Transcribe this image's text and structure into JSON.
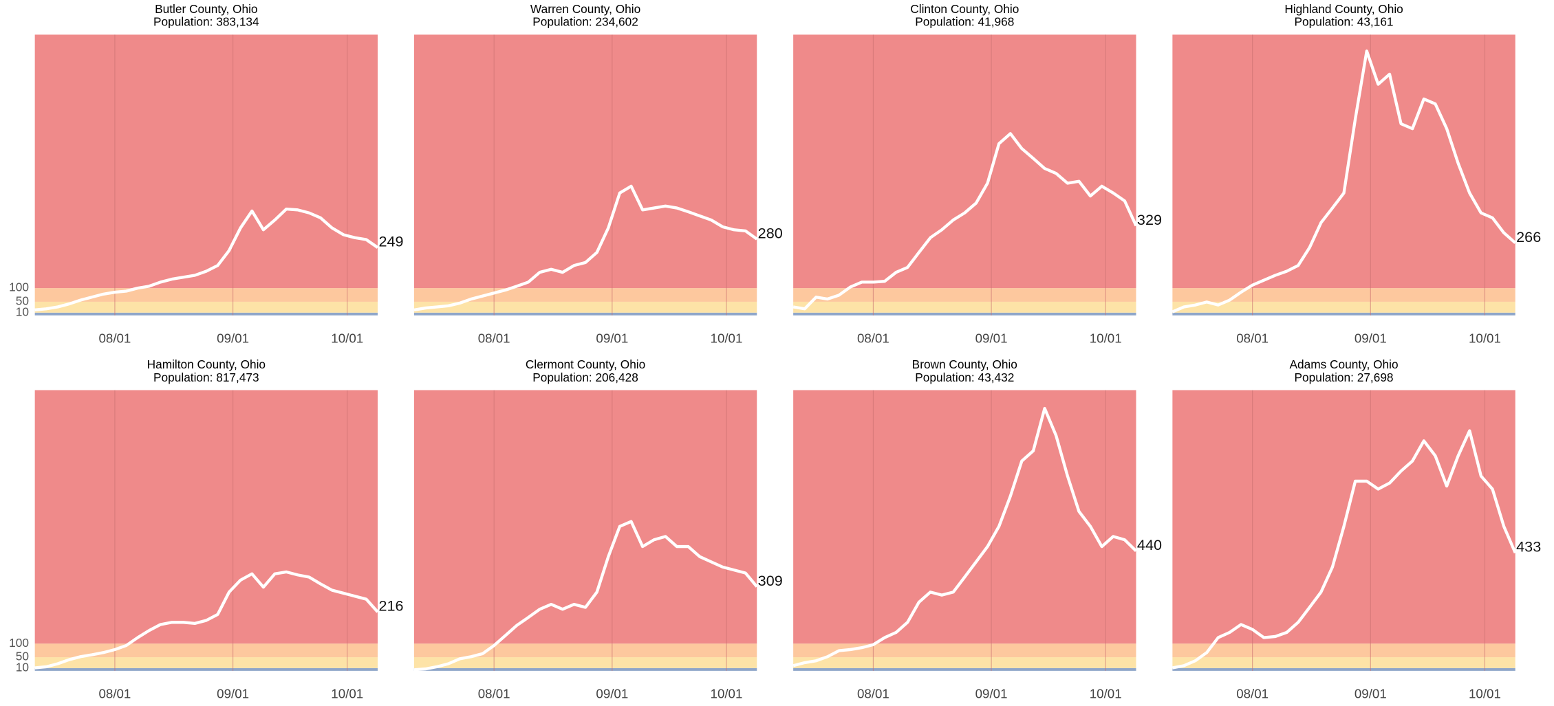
{
  "chart_data": [
    {
      "type": "line",
      "title": "Butler County, Ohio",
      "subtitle": "Population: 383,134",
      "x": [
        "07/11",
        "07/14",
        "07/17",
        "07/20",
        "07/23",
        "07/26",
        "07/29",
        "08/01",
        "08/04",
        "08/07",
        "08/10",
        "08/13",
        "08/16",
        "08/19",
        "08/22",
        "08/25",
        "08/28",
        "08/31",
        "09/03",
        "09/06",
        "09/09",
        "09/12",
        "09/15",
        "09/18",
        "09/21",
        "09/24",
        "09/27",
        "09/30",
        "10/03",
        "10/06",
        "10/09"
      ],
      "values": [
        20,
        24,
        31,
        42,
        56,
        67,
        78,
        85,
        89,
        100,
        107,
        122,
        133,
        140,
        147,
        162,
        183,
        238,
        321,
        383,
        314,
        350,
        390,
        387,
        376,
        358,
        321,
        296,
        285,
        278,
        249
      ],
      "xlim": [
        "07/11",
        "10/09"
      ],
      "xticks": [
        "08/01",
        "09/01",
        "10/01"
      ],
      "ylim": [
        0,
        1030
      ],
      "yticks": [
        10,
        50,
        100
      ],
      "color": "#ffffff",
      "grid": "x",
      "bands": [
        {
          "upto": 10,
          "color": "#8fa6c9"
        },
        {
          "upto": 50,
          "color": "#fde3a7"
        },
        {
          "upto": 100,
          "color": "#fdc89e"
        },
        {
          "color": "#ef8a8a"
        }
      ]
    },
    {
      "type": "line",
      "title": "Warren County, Ohio",
      "subtitle": "Population: 234,602",
      "x": [
        "07/11",
        "07/14",
        "07/17",
        "07/20",
        "07/23",
        "07/26",
        "07/29",
        "08/01",
        "08/04",
        "08/07",
        "08/10",
        "08/13",
        "08/16",
        "08/19",
        "08/22",
        "08/25",
        "08/28",
        "08/31",
        "09/03",
        "09/06",
        "09/09",
        "09/12",
        "09/15",
        "09/18",
        "09/21",
        "09/24",
        "09/27",
        "09/30",
        "10/03",
        "10/06",
        "10/09"
      ],
      "values": [
        20,
        27,
        31,
        35,
        45,
        60,
        71,
        82,
        93,
        107,
        122,
        158,
        169,
        158,
        183,
        194,
        231,
        321,
        449,
        474,
        387,
        394,
        401,
        394,
        380,
        365,
        350,
        325,
        314,
        310,
        280
      ],
      "xlim": [
        "07/11",
        "10/09"
      ],
      "xticks": [
        "08/01",
        "09/01",
        "10/01"
      ],
      "ylim": [
        0,
        1030
      ],
      "color": "#ffffff",
      "grid": "x",
      "bands": [
        {
          "upto": 10,
          "color": "#8fa6c9"
        },
        {
          "upto": 50,
          "color": "#fde3a7"
        },
        {
          "upto": 100,
          "color": "#fdc89e"
        },
        {
          "color": "#ef8a8a"
        }
      ]
    },
    {
      "type": "line",
      "title": "Clinton County, Ohio",
      "subtitle": "Population:  41,968",
      "x": [
        "07/11",
        "07/14",
        "07/17",
        "07/20",
        "07/23",
        "07/26",
        "07/29",
        "08/01",
        "08/04",
        "08/07",
        "08/10",
        "08/13",
        "08/16",
        "08/19",
        "08/22",
        "08/25",
        "08/28",
        "08/31",
        "09/03",
        "09/06",
        "09/09",
        "09/12",
        "09/15",
        "09/18",
        "09/21",
        "09/24",
        "09/27",
        "09/30",
        "10/03",
        "10/06",
        "10/09"
      ],
      "values": [
        31,
        24,
        67,
        60,
        74,
        104,
        122,
        122,
        125,
        158,
        176,
        231,
        285,
        314,
        350,
        376,
        412,
        485,
        630,
        667,
        612,
        576,
        539,
        521,
        485,
        492,
        438,
        474,
        449,
        420,
        329
      ],
      "xlim": [
        "07/11",
        "10/09"
      ],
      "xticks": [
        "08/01",
        "09/01",
        "10/01"
      ],
      "ylim": [
        0,
        1030
      ],
      "color": "#ffffff",
      "grid": "x",
      "bands": [
        {
          "upto": 10,
          "color": "#8fa6c9"
        },
        {
          "upto": 50,
          "color": "#fde3a7"
        },
        {
          "upto": 100,
          "color": "#fdc89e"
        },
        {
          "color": "#ef8a8a"
        }
      ]
    },
    {
      "type": "line",
      "title": "Highland County, Ohio",
      "subtitle": "Population:  43,161",
      "x": [
        "07/11",
        "07/14",
        "07/17",
        "07/20",
        "07/23",
        "07/26",
        "07/29",
        "08/01",
        "08/04",
        "08/07",
        "08/10",
        "08/13",
        "08/16",
        "08/19",
        "08/22",
        "08/25",
        "08/28",
        "08/31",
        "09/03",
        "09/06",
        "09/09",
        "09/12",
        "09/15",
        "09/18",
        "09/21",
        "09/24",
        "09/27",
        "09/30",
        "10/03",
        "10/06",
        "10/09"
      ],
      "values": [
        13,
        31,
        38,
        49,
        38,
        56,
        85,
        111,
        129,
        147,
        162,
        183,
        249,
        340,
        394,
        449,
        721,
        970,
        848,
        885,
        703,
        685,
        794,
        776,
        685,
        558,
        449,
        376,
        358,
        303,
        266
      ],
      "xlim": [
        "07/11",
        "10/09"
      ],
      "xticks": [
        "08/01",
        "09/01",
        "10/01"
      ],
      "ylim": [
        0,
        1030
      ],
      "color": "#ffffff",
      "grid": "x",
      "bands": [
        {
          "upto": 10,
          "color": "#8fa6c9"
        },
        {
          "upto": 50,
          "color": "#fde3a7"
        },
        {
          "upto": 100,
          "color": "#fdc89e"
        },
        {
          "color": "#ef8a8a"
        }
      ]
    },
    {
      "type": "line",
      "title": "Hamilton County, Ohio",
      "subtitle": "Population: 817,473",
      "x": [
        "07/11",
        "07/14",
        "07/17",
        "07/20",
        "07/23",
        "07/26",
        "07/29",
        "08/01",
        "08/04",
        "08/07",
        "08/10",
        "08/13",
        "08/16",
        "08/19",
        "08/22",
        "08/25",
        "08/28",
        "08/31",
        "09/03",
        "09/06",
        "09/09",
        "09/12",
        "09/15",
        "09/18",
        "09/21",
        "09/24",
        "09/27",
        "09/30",
        "10/03",
        "10/06",
        "10/09"
      ],
      "values": [
        11,
        15,
        26,
        41,
        52,
        59,
        67,
        78,
        93,
        122,
        148,
        170,
        178,
        178,
        174,
        185,
        207,
        289,
        333,
        356,
        307,
        356,
        363,
        352,
        344,
        319,
        296,
        285,
        274,
        263,
        216
      ],
      "xlim": [
        "07/11",
        "10/09"
      ],
      "xticks": [
        "08/01",
        "09/01",
        "10/01"
      ],
      "ylim": [
        0,
        1030
      ],
      "yticks": [
        10,
        50,
        100
      ],
      "color": "#ffffff",
      "grid": "x",
      "bands": [
        {
          "upto": 10,
          "color": "#8fa6c9"
        },
        {
          "upto": 50,
          "color": "#fde3a7"
        },
        {
          "upto": 100,
          "color": "#fdc89e"
        },
        {
          "color": "#ef8a8a"
        }
      ]
    },
    {
      "type": "line",
      "title": "Clermont County, Ohio",
      "subtitle": "Population: 206,428",
      "x": [
        "07/11",
        "07/14",
        "07/17",
        "07/20",
        "07/23",
        "07/26",
        "07/29",
        "08/01",
        "08/04",
        "08/07",
        "08/10",
        "08/13",
        "08/16",
        "08/19",
        "08/22",
        "08/25",
        "08/28",
        "08/31",
        "09/03",
        "09/06",
        "09/09",
        "09/12",
        "09/15",
        "09/18",
        "09/21",
        "09/24",
        "09/27",
        "09/30",
        "10/03",
        "10/06",
        "10/09"
      ],
      "values": [
        4,
        7,
        15,
        26,
        44,
        52,
        63,
        93,
        130,
        167,
        196,
        226,
        244,
        226,
        244,
        233,
        289,
        419,
        530,
        548,
        456,
        481,
        493,
        456,
        456,
        419,
        400,
        381,
        370,
        359,
        309
      ],
      "xlim": [
        "07/11",
        "10/09"
      ],
      "xticks": [
        "08/01",
        "09/01",
        "10/01"
      ],
      "ylim": [
        0,
        1030
      ],
      "color": "#ffffff",
      "grid": "x",
      "bands": [
        {
          "upto": 10,
          "color": "#8fa6c9"
        },
        {
          "upto": 50,
          "color": "#fde3a7"
        },
        {
          "upto": 100,
          "color": "#fdc89e"
        },
        {
          "color": "#ef8a8a"
        }
      ]
    },
    {
      "type": "line",
      "title": "Brown County, Ohio",
      "subtitle": "Population:  43,432",
      "x": [
        "07/11",
        "07/14",
        "07/17",
        "07/20",
        "07/23",
        "07/26",
        "07/29",
        "08/01",
        "08/04",
        "08/07",
        "08/10",
        "08/13",
        "08/16",
        "08/19",
        "08/22",
        "08/25",
        "08/28",
        "08/31",
        "09/03",
        "09/06",
        "09/09",
        "09/12",
        "09/15",
        "09/18",
        "09/21",
        "09/24",
        "09/27",
        "09/30",
        "10/03",
        "10/06",
        "10/09"
      ],
      "values": [
        19,
        30,
        37,
        52,
        74,
        78,
        85,
        96,
        122,
        141,
        178,
        252,
        289,
        278,
        289,
        344,
        400,
        456,
        530,
        641,
        770,
        807,
        963,
        863,
        715,
        585,
        530,
        456,
        493,
        481,
        440
      ],
      "xlim": [
        "07/11",
        "10/09"
      ],
      "xticks": [
        "08/01",
        "09/01",
        "10/01"
      ],
      "ylim": [
        0,
        1030
      ],
      "color": "#ffffff",
      "grid": "x",
      "bands": [
        {
          "upto": 10,
          "color": "#8fa6c9"
        },
        {
          "upto": 50,
          "color": "#fde3a7"
        },
        {
          "upto": 100,
          "color": "#fdc89e"
        },
        {
          "color": "#ef8a8a"
        }
      ]
    },
    {
      "type": "line",
      "title": "Adams County, Ohio",
      "subtitle": "Population:  27,698",
      "x": [
        "07/11",
        "07/14",
        "07/17",
        "07/20",
        "07/23",
        "07/26",
        "07/29",
        "08/01",
        "08/04",
        "08/07",
        "08/10",
        "08/13",
        "08/16",
        "08/19",
        "08/22",
        "08/25",
        "08/28",
        "08/31",
        "09/03",
        "09/06",
        "09/09",
        "09/12",
        "09/15",
        "09/18",
        "09/21",
        "09/24",
        "09/27",
        "09/30",
        "10/03",
        "10/06",
        "10/09"
      ],
      "values": [
        11,
        19,
        37,
        67,
        122,
        141,
        170,
        152,
        122,
        126,
        141,
        178,
        233,
        289,
        381,
        530,
        696,
        696,
        667,
        689,
        733,
        770,
        844,
        789,
        678,
        789,
        881,
        715,
        667,
        530,
        433
      ],
      "xlim": [
        "07/11",
        "10/09"
      ],
      "xticks": [
        "08/01",
        "09/01",
        "10/01"
      ],
      "ylim": [
        0,
        1030
      ],
      "color": "#ffffff",
      "grid": "x",
      "bands": [
        {
          "upto": 10,
          "color": "#8fa6c9"
        },
        {
          "upto": 50,
          "color": "#fde3a7"
        },
        {
          "upto": 100,
          "color": "#fdc89e"
        },
        {
          "color": "#ef8a8a"
        }
      ]
    }
  ]
}
